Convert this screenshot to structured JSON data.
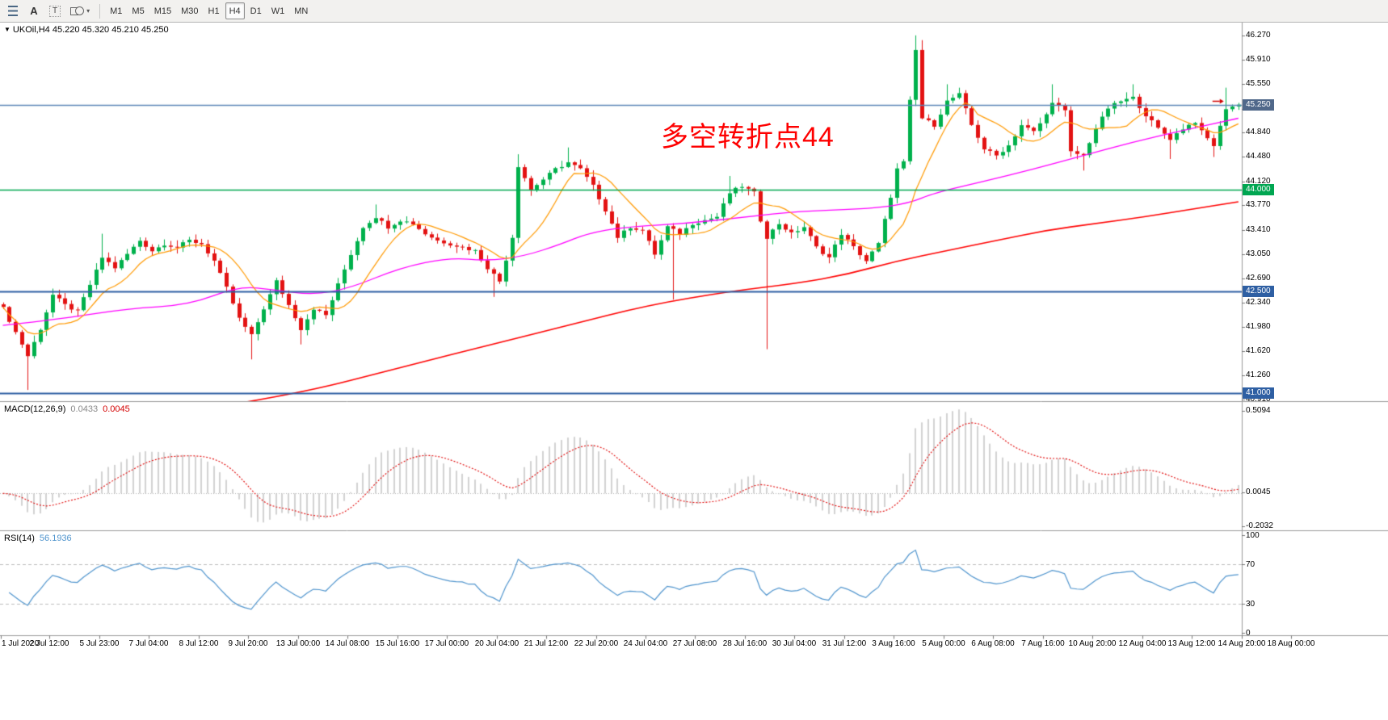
{
  "toolbar": {
    "icons": {
      "a_glyph": "A",
      "t_glyph": "T",
      "caret_glyph": "▾"
    },
    "timeframes": [
      "M1",
      "M5",
      "M15",
      "M30",
      "H1",
      "H4",
      "D1",
      "W1",
      "MN"
    ],
    "active_timeframe": "H4"
  },
  "chart": {
    "collapse_glyph": "▼",
    "symbol_label": "UKOil,H4",
    "ohlc_text": "45.220 45.320 45.210 45.250",
    "annotation": {
      "text": "多空转折点44",
      "color": "#fe0000"
    },
    "price_axis": {
      "labels": [
        "46.270",
        "45.910",
        "45.550",
        "45.190",
        "44.840",
        "44.480",
        "44.120",
        "43.770",
        "43.410",
        "43.050",
        "42.690",
        "42.340",
        "41.980",
        "41.620",
        "41.260",
        "40.910"
      ],
      "tags": [
        {
          "value": "45.250",
          "bg": "#50688a"
        },
        {
          "value": "44.000",
          "bg": "#00a651"
        },
        {
          "value": "42.500",
          "bg": "#2e5fa3"
        },
        {
          "value": "41.000",
          "bg": "#2e5fa3"
        }
      ]
    }
  },
  "macd": {
    "name": "MACD(12,26,9)",
    "main_value": "0.0433",
    "signal_value": "0.0045",
    "axis_labels": [
      "0.5094",
      "0.0045",
      "-0.2032"
    ]
  },
  "rsi": {
    "name": "RSI(14)",
    "value": "56.1936",
    "axis_labels": [
      "100",
      "70",
      "30",
      "0"
    ]
  },
  "time_axis": {
    "labels": [
      "1 Jul 2020",
      "2 Jul 12:00",
      "5 Jul 23:00",
      "7 Jul 04:00",
      "8 Jul 12:00",
      "9 Jul 20:00",
      "13 Jul 00:00",
      "14 Jul 08:00",
      "15 Jul 16:00",
      "17 Jul 00:00",
      "20 Jul 04:00",
      "21 Jul 12:00",
      "22 Jul 20:00",
      "24 Jul 04:00",
      "27 Jul 08:00",
      "28 Jul 16:00",
      "30 Jul 04:00",
      "31 Jul 12:00",
      "3 Aug 16:00",
      "5 Aug 00:00",
      "6 Aug 08:00",
      "7 Aug 16:00",
      "10 Aug 20:00",
      "12 Aug 04:00",
      "13 Aug 12:00",
      "14 Aug 20:00",
      "18 Aug 00:00"
    ]
  },
  "chart_data": {
    "type": "candlestick",
    "symbol": "UKOil",
    "timeframe": "H4",
    "candle_count": 200,
    "candle_up_color": "#00b14c",
    "candle_down_color": "#e31212",
    "close_path_anchors": [
      [
        0,
        42.25
      ],
      [
        2,
        41.9
      ],
      [
        4,
        41.55
      ],
      [
        6,
        41.95
      ],
      [
        8,
        42.45
      ],
      [
        10,
        42.3
      ],
      [
        12,
        42.2
      ],
      [
        14,
        42.6
      ],
      [
        16,
        43.0
      ],
      [
        18,
        42.85
      ],
      [
        20,
        43.05
      ],
      [
        22,
        43.25
      ],
      [
        24,
        43.1
      ],
      [
        26,
        43.2
      ],
      [
        28,
        43.15
      ],
      [
        30,
        43.25
      ],
      [
        32,
        43.2
      ],
      [
        34,
        42.95
      ],
      [
        36,
        42.55
      ],
      [
        38,
        42.1
      ],
      [
        40,
        41.85
      ],
      [
        42,
        42.25
      ],
      [
        44,
        42.65
      ],
      [
        46,
        42.3
      ],
      [
        48,
        41.95
      ],
      [
        50,
        42.25
      ],
      [
        52,
        42.15
      ],
      [
        54,
        42.6
      ],
      [
        56,
        43.05
      ],
      [
        58,
        43.45
      ],
      [
        60,
        43.6
      ],
      [
        62,
        43.45
      ],
      [
        64,
        43.55
      ],
      [
        66,
        43.5
      ],
      [
        68,
        43.35
      ],
      [
        70,
        43.25
      ],
      [
        72,
        43.2
      ],
      [
        74,
        43.15
      ],
      [
        76,
        43.1
      ],
      [
        78,
        42.85
      ],
      [
        80,
        42.65
      ],
      [
        82,
        43.3
      ],
      [
        83,
        44.35
      ],
      [
        85,
        44.0
      ],
      [
        87,
        44.15
      ],
      [
        89,
        44.3
      ],
      [
        91,
        44.4
      ],
      [
        93,
        44.3
      ],
      [
        95,
        44.05
      ],
      [
        97,
        43.7
      ],
      [
        99,
        43.3
      ],
      [
        101,
        43.45
      ],
      [
        103,
        43.4
      ],
      [
        105,
        43.05
      ],
      [
        107,
        43.45
      ],
      [
        109,
        43.35
      ],
      [
        111,
        43.5
      ],
      [
        113,
        43.55
      ],
      [
        115,
        43.6
      ],
      [
        117,
        43.95
      ],
      [
        119,
        44.05
      ],
      [
        121,
        43.95
      ],
      [
        122,
        43.55
      ],
      [
        123,
        43.3
      ],
      [
        125,
        43.5
      ],
      [
        127,
        43.35
      ],
      [
        129,
        43.45
      ],
      [
        131,
        43.15
      ],
      [
        133,
        43.0
      ],
      [
        135,
        43.35
      ],
      [
        137,
        43.15
      ],
      [
        139,
        42.95
      ],
      [
        141,
        43.2
      ],
      [
        143,
        43.9
      ],
      [
        144,
        44.3
      ],
      [
        145,
        44.4
      ],
      [
        146,
        45.3
      ],
      [
        147,
        46.05
      ],
      [
        148,
        45.05
      ],
      [
        150,
        44.95
      ],
      [
        152,
        45.3
      ],
      [
        154,
        45.4
      ],
      [
        156,
        44.95
      ],
      [
        158,
        44.6
      ],
      [
        160,
        44.5
      ],
      [
        162,
        44.65
      ],
      [
        164,
        44.95
      ],
      [
        166,
        44.85
      ],
      [
        168,
        45.1
      ],
      [
        169,
        45.3
      ],
      [
        171,
        45.15
      ],
      [
        172,
        44.55
      ],
      [
        174,
        44.5
      ],
      [
        176,
        44.9
      ],
      [
        178,
        45.2
      ],
      [
        180,
        45.3
      ],
      [
        182,
        45.35
      ],
      [
        184,
        45.1
      ],
      [
        186,
        44.9
      ],
      [
        188,
        44.75
      ],
      [
        190,
        44.9
      ],
      [
        192,
        45.0
      ],
      [
        193,
        44.85
      ],
      [
        195,
        44.65
      ],
      [
        197,
        45.2
      ],
      [
        199,
        45.25
      ]
    ],
    "wick_extremes": [
      [
        4,
        "low",
        41.05
      ],
      [
        16,
        "high",
        43.35
      ],
      [
        40,
        "low",
        41.5
      ],
      [
        48,
        "low",
        41.72
      ],
      [
        60,
        "high",
        43.78
      ],
      [
        79,
        "low",
        42.42
      ],
      [
        83,
        "high",
        44.52
      ],
      [
        91,
        "high",
        44.62
      ],
      [
        105,
        "low",
        42.98
      ],
      [
        108,
        "low",
        42.38
      ],
      [
        117,
        "high",
        44.2
      ],
      [
        123,
        "low",
        41.65
      ],
      [
        147,
        "high",
        46.27
      ],
      [
        148,
        "high",
        46.2
      ],
      [
        152,
        "high",
        45.55
      ],
      [
        154,
        "high",
        45.5
      ],
      [
        169,
        "high",
        45.55
      ],
      [
        174,
        "low",
        44.28
      ],
      [
        182,
        "high",
        45.55
      ],
      [
        188,
        "low",
        44.45
      ],
      [
        195,
        "low",
        44.48
      ],
      [
        197,
        "high",
        45.5
      ]
    ],
    "horizontal_lines": [
      {
        "price": 45.25,
        "color": "#5b86b8",
        "width": 1.4
      },
      {
        "price": 44.0,
        "color": "#00a651",
        "width": 1.5
      },
      {
        "price": 42.5,
        "color": "#2e5fa3",
        "width": 2
      },
      {
        "price": 41.0,
        "color": "#2e5fa3",
        "width": 2
      }
    ],
    "moving_averages": [
      {
        "name": "fast",
        "color": "#ff9900",
        "period": 10,
        "computed": true
      },
      {
        "name": "mid",
        "color": "#ff00ff",
        "anchors": [
          [
            0,
            42.0
          ],
          [
            10,
            42.1
          ],
          [
            20,
            42.25
          ],
          [
            30,
            42.3
          ],
          [
            38,
            42.58
          ],
          [
            44,
            42.52
          ],
          [
            50,
            42.45
          ],
          [
            56,
            42.55
          ],
          [
            64,
            42.85
          ],
          [
            72,
            43.0
          ],
          [
            78,
            42.95
          ],
          [
            84,
            43.02
          ],
          [
            90,
            43.2
          ],
          [
            94,
            43.35
          ],
          [
            100,
            43.45
          ],
          [
            110,
            43.5
          ],
          [
            120,
            43.6
          ],
          [
            128,
            43.68
          ],
          [
            140,
            43.72
          ],
          [
            146,
            43.8
          ],
          [
            150,
            43.95
          ],
          [
            158,
            44.12
          ],
          [
            166,
            44.3
          ],
          [
            174,
            44.5
          ],
          [
            182,
            44.7
          ],
          [
            190,
            44.87
          ],
          [
            199,
            45.05
          ]
        ]
      },
      {
        "name": "slow",
        "color": "#ff0000",
        "anchors": [
          [
            0,
            40.3
          ],
          [
            24,
            40.65
          ],
          [
            48,
            41.0
          ],
          [
            64,
            41.38
          ],
          [
            80,
            41.75
          ],
          [
            91,
            42.0
          ],
          [
            104,
            42.3
          ],
          [
            117,
            42.5
          ],
          [
            128,
            42.62
          ],
          [
            136,
            42.75
          ],
          [
            144,
            42.95
          ],
          [
            152,
            43.1
          ],
          [
            160,
            43.25
          ],
          [
            168,
            43.4
          ],
          [
            176,
            43.5
          ],
          [
            184,
            43.6
          ],
          [
            192,
            43.72
          ],
          [
            199,
            43.82
          ]
        ]
      }
    ],
    "macd": {
      "fast": 12,
      "slow": 26,
      "signal": 9,
      "histogram_color": "#c4c4c4",
      "signal_color": "#e00000",
      "axis_max": 0.5094,
      "axis_min": -0.2032,
      "current_main": 0.0433,
      "current_signal": 0.0045
    },
    "rsi": {
      "period": 14,
      "color": "#4f94cd",
      "levels": [
        70,
        30
      ],
      "current": 56.1936
    },
    "marker": {
      "type": "arrow-right",
      "index": 196,
      "price": 45.3,
      "color": "#d00000"
    }
  }
}
